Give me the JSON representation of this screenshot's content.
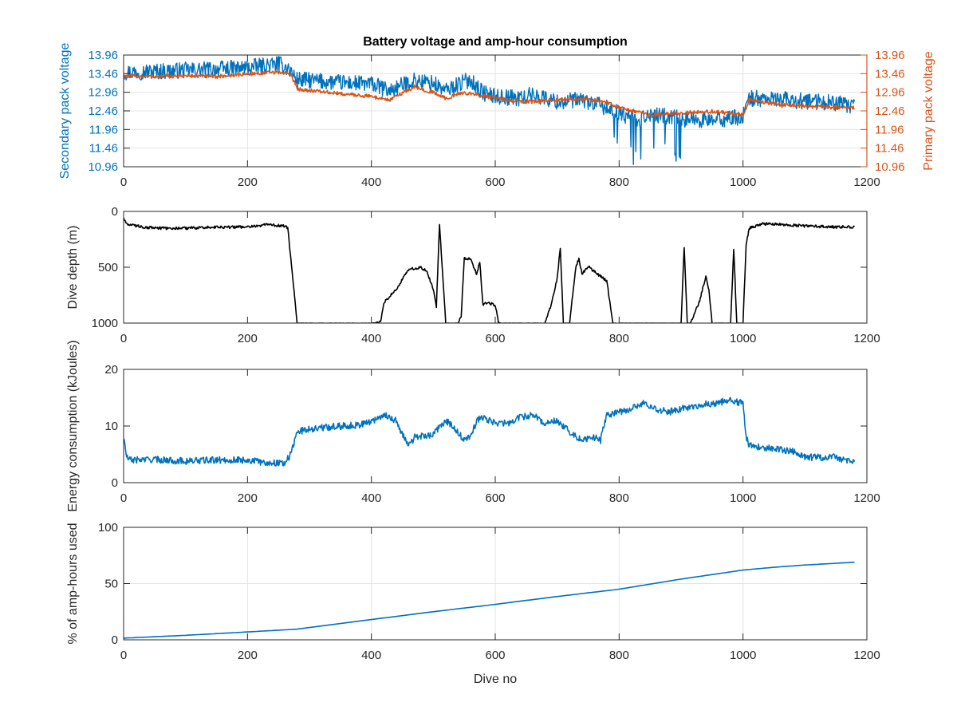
{
  "figure": {
    "title": "Battery voltage and amp-hour consumption",
    "colors": {
      "blue": "#0072BD",
      "orange": "#D95319",
      "black": "#000000",
      "grid": "#e3e3e3",
      "axis": "#262626"
    }
  },
  "chart_data": [
    {
      "type": "line",
      "title": "Battery voltage and amp-hour consumption",
      "xlabel": "",
      "ylabel": "Secondary pack voltage",
      "ylabel_right": "Primary pack voltage",
      "xlim": [
        0,
        1200
      ],
      "ylim": [
        10.96,
        13.96
      ],
      "xticks": [
        0,
        200,
        400,
        600,
        800,
        1000,
        1200
      ],
      "yticks": [
        10.96,
        11.46,
        11.96,
        12.46,
        12.96,
        13.46,
        13.96
      ],
      "grid": true,
      "series": [
        {
          "name": "Secondary pack voltage",
          "color": "#0072BD",
          "axis": "left",
          "noise": 0.22,
          "x": [
            0,
            50,
            100,
            150,
            200,
            250,
            265,
            280,
            350,
            400,
            430,
            450,
            470,
            500,
            520,
            540,
            560,
            580,
            600,
            640,
            660,
            700,
            740,
            770,
            800,
            830,
            860,
            900,
            950,
            1000,
            1010,
            1050,
            1100,
            1150,
            1180
          ],
          "y": [
            13.5,
            13.52,
            13.55,
            13.58,
            13.62,
            13.72,
            13.62,
            13.3,
            13.22,
            13.18,
            13.0,
            13.15,
            13.28,
            13.2,
            13.0,
            13.18,
            13.3,
            12.95,
            12.85,
            12.8,
            12.9,
            12.7,
            12.75,
            12.6,
            12.4,
            12.2,
            12.35,
            12.25,
            12.2,
            12.3,
            12.8,
            12.78,
            12.72,
            12.68,
            12.55
          ]
        },
        {
          "name": "Primary pack voltage",
          "color": "#D95319",
          "axis": "right",
          "noise": 0.05,
          "x": [
            0,
            50,
            100,
            150,
            200,
            250,
            270,
            280,
            350,
            400,
            430,
            450,
            470,
            500,
            520,
            550,
            600,
            650,
            700,
            740,
            780,
            800,
            850,
            880,
            900,
            950,
            1000,
            1010,
            1050,
            1100,
            1150,
            1180
          ],
          "y": [
            13.4,
            13.38,
            13.4,
            13.38,
            13.45,
            13.5,
            13.45,
            13.05,
            12.92,
            12.85,
            12.75,
            12.95,
            13.1,
            12.95,
            12.8,
            12.95,
            12.8,
            12.7,
            12.75,
            12.78,
            12.7,
            12.55,
            12.35,
            12.38,
            12.4,
            12.45,
            12.35,
            12.75,
            12.65,
            12.58,
            12.55,
            12.55
          ]
        }
      ]
    },
    {
      "type": "line",
      "xlabel": "",
      "ylabel": "Dive depth (m)",
      "xlim": [
        0,
        1200
      ],
      "ylim": [
        0,
        1000
      ],
      "y_reversed": true,
      "xticks": [
        0,
        200,
        400,
        600,
        800,
        1000,
        1200
      ],
      "yticks": [
        0,
        500,
        1000
      ],
      "grid": false,
      "series": [
        {
          "name": "Dive depth",
          "color": "#000000",
          "noise": 12,
          "x": [
            0,
            5,
            30,
            60,
            100,
            150,
            200,
            230,
            260,
            265,
            275,
            280,
            300,
            350,
            400,
            415,
            420,
            440,
            460,
            480,
            490,
            495,
            500,
            505,
            510,
            520,
            540,
            545,
            550,
            560,
            570,
            575,
            580,
            590,
            600,
            605,
            610,
            640,
            680,
            690,
            700,
            705,
            710,
            720,
            730,
            735,
            740,
            750,
            760,
            780,
            790,
            795,
            800,
            850,
            900,
            905,
            910,
            915,
            930,
            940,
            945,
            950,
            980,
            985,
            990,
            995,
            1000,
            1005,
            1010,
            1030,
            1100,
            1150,
            1180
          ],
          "y": [
            60,
            110,
            140,
            150,
            150,
            140,
            140,
            120,
            130,
            150,
            700,
            1000,
            1000,
            1000,
            1000,
            990,
            820,
            700,
            520,
            500,
            540,
            620,
            700,
            850,
            110,
            1000,
            1000,
            940,
            420,
            430,
            560,
            450,
            830,
            820,
            840,
            990,
            1000,
            1000,
            1000,
            840,
            600,
            320,
            1000,
            1000,
            500,
            420,
            560,
            490,
            540,
            620,
            1000,
            1000,
            1000,
            1000,
            1000,
            320,
            1000,
            1000,
            800,
            580,
            700,
            1000,
            1000,
            330,
            1000,
            1000,
            1000,
            300,
            150,
            110,
            130,
            140,
            140
          ]
        }
      ]
    },
    {
      "type": "line",
      "xlabel": "",
      "ylabel": "Energy consumption (kJoules)",
      "xlim": [
        0,
        1200
      ],
      "ylim": [
        0,
        20
      ],
      "xticks": [
        0,
        200,
        400,
        600,
        800,
        1000,
        1200
      ],
      "yticks": [
        0,
        10,
        20
      ],
      "grid": false,
      "series": [
        {
          "name": "Energy consumption",
          "color": "#0072BD",
          "noise": 0.6,
          "x": [
            0,
            5,
            10,
            50,
            100,
            150,
            200,
            230,
            260,
            270,
            280,
            300,
            330,
            350,
            380,
            400,
            420,
            440,
            450,
            460,
            470,
            500,
            520,
            530,
            550,
            560,
            570,
            580,
            600,
            620,
            640,
            660,
            680,
            700,
            720,
            740,
            760,
            770,
            780,
            800,
            820,
            840,
            860,
            880,
            900,
            920,
            950,
            980,
            1000,
            1005,
            1010,
            1050,
            1080,
            1100,
            1150,
            1180
          ],
          "y": [
            8.0,
            4.5,
            4.0,
            4.1,
            3.8,
            4.0,
            4.0,
            3.5,
            3.5,
            5.0,
            9.0,
            9.5,
            9.8,
            10.0,
            10.2,
            10.8,
            12.0,
            11.0,
            8.5,
            6.5,
            8.0,
            8.5,
            11.0,
            10.0,
            7.5,
            8.0,
            11.0,
            11.5,
            10.5,
            10.5,
            11.5,
            12.0,
            10.5,
            11.0,
            9.0,
            7.5,
            8.0,
            7.5,
            12.0,
            12.5,
            13.0,
            14.0,
            13.0,
            12.5,
            13.0,
            13.5,
            14.0,
            14.5,
            14.0,
            8.0,
            6.5,
            6.0,
            5.5,
            4.5,
            4.5,
            3.5
          ]
        }
      ]
    },
    {
      "type": "line",
      "xlabel": "Dive no",
      "ylabel": "% of amp-hours used",
      "xlim": [
        0,
        1200
      ],
      "ylim": [
        0,
        100
      ],
      "xticks": [
        0,
        200,
        400,
        600,
        800,
        1000,
        1200
      ],
      "yticks": [
        0,
        50,
        100
      ],
      "grid": true,
      "series": [
        {
          "name": "% of amp-hours used",
          "color": "#0072BD",
          "noise": 0,
          "x": [
            0,
            100,
            200,
            280,
            400,
            500,
            600,
            700,
            800,
            900,
            1000,
            1050,
            1100,
            1180
          ],
          "y": [
            1.5,
            4,
            7,
            9.5,
            18,
            25,
            31.5,
            38.5,
            45,
            54,
            62,
            64.5,
            66.5,
            69
          ]
        }
      ]
    }
  ]
}
